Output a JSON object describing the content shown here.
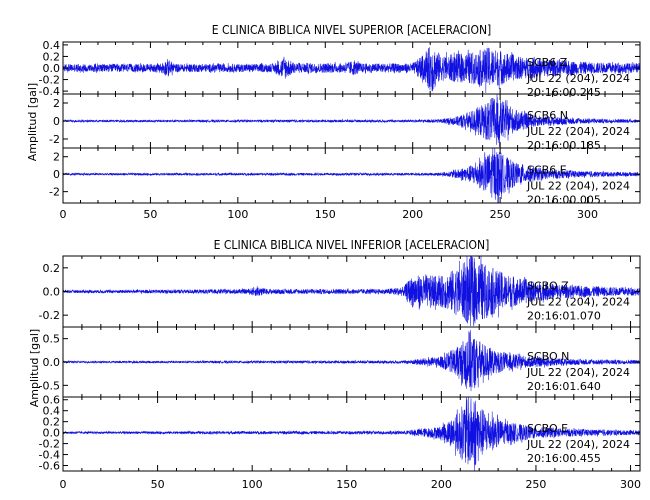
{
  "chart_data": [
    {
      "type": "line",
      "title": "E CLINICA BIBLICA NIVEL SUPERIOR [ACELERACION]",
      "ylabel": "Amplitud [gal]",
      "xlim": [
        0,
        330
      ],
      "xticks": [
        "0",
        "50",
        "100",
        "150",
        "200",
        "250",
        "300"
      ],
      "line_color": "#1010e0",
      "panels": [
        {
          "station": "SCB6",
          "component": "Z",
          "date": "JUL 22 (204), 2024",
          "time": "20:16:00.245",
          "ylim": [
            -0.45,
            0.45
          ],
          "yticks": [
            "0.4",
            "0.2",
            "0.0",
            "-0.2",
            "-0.4"
          ],
          "envelope": [
            [
              0,
              0.06
            ],
            [
              10,
              0.07
            ],
            [
              55,
              0.07
            ],
            [
              60,
              0.16
            ],
            [
              64,
              0.07
            ],
            [
              120,
              0.07
            ],
            [
              127,
              0.2
            ],
            [
              132,
              0.09
            ],
            [
              160,
              0.08
            ],
            [
              166,
              0.13
            ],
            [
              171,
              0.08
            ],
            [
              200,
              0.08
            ],
            [
              207,
              0.25
            ],
            [
              211,
              0.44
            ],
            [
              216,
              0.22
            ],
            [
              226,
              0.25
            ],
            [
              236,
              0.28
            ],
            [
              243,
              0.36
            ],
            [
              250,
              0.3
            ],
            [
              260,
              0.2
            ],
            [
              278,
              0.15
            ],
            [
              300,
              0.1
            ],
            [
              330,
              0.08
            ]
          ]
        },
        {
          "station": "SCB6",
          "component": "N",
          "date": "JUL 22 (204), 2024",
          "time": "20:16:00.185",
          "ylim": [
            -3,
            3
          ],
          "yticks": [
            "2",
            "0",
            "-2"
          ],
          "envelope": [
            [
              0,
              0.12
            ],
            [
              205,
              0.14
            ],
            [
              215,
              0.2
            ],
            [
              225,
              0.5
            ],
            [
              235,
              1.3
            ],
            [
              243,
              2.2
            ],
            [
              247,
              2.9
            ],
            [
              251,
              2.3
            ],
            [
              258,
              1.3
            ],
            [
              270,
              0.6
            ],
            [
              290,
              0.35
            ],
            [
              310,
              0.22
            ],
            [
              330,
              0.18
            ]
          ]
        },
        {
          "station": "SCB6",
          "component": "E",
          "date": "JUL 22 (204), 2024",
          "time": "20:16:00.005",
          "ylim": [
            -3.3,
            3
          ],
          "yticks": [
            "2",
            "0",
            "-2"
          ],
          "envelope": [
            [
              0,
              0.12
            ],
            [
              210,
              0.14
            ],
            [
              220,
              0.25
            ],
            [
              232,
              0.9
            ],
            [
              240,
              1.8
            ],
            [
              245,
              2.7
            ],
            [
              248,
              3.1
            ],
            [
              252,
              2.2
            ],
            [
              260,
              1.2
            ],
            [
              275,
              0.6
            ],
            [
              295,
              0.35
            ],
            [
              330,
              0.2
            ]
          ]
        }
      ]
    },
    {
      "type": "line",
      "title": "E CLINICA BIBLICA NIVEL INFERIOR [ACELERACION]",
      "ylabel": "Amplitud [gal]",
      "xlim": [
        0,
        305
      ],
      "xticks": [
        "0",
        "50",
        "100",
        "150",
        "200",
        "250",
        "300"
      ],
      "line_color": "#1010e0",
      "panels": [
        {
          "station": "SCBO",
          "component": "Z",
          "date": "JUL 22 (204), 2024",
          "time": "20:16:01.070",
          "ylim": [
            -0.3,
            0.3
          ],
          "yticks": [
            "0.2",
            "0.0",
            "-0.2"
          ],
          "envelope": [
            [
              0,
              0.012
            ],
            [
              50,
              0.015
            ],
            [
              98,
              0.02
            ],
            [
              103,
              0.045
            ],
            [
              108,
              0.02
            ],
            [
              170,
              0.02
            ],
            [
              180,
              0.04
            ],
            [
              185,
              0.14
            ],
            [
              200,
              0.13
            ],
            [
              210,
              0.22
            ],
            [
              216,
              0.31
            ],
            [
              222,
              0.24
            ],
            [
              235,
              0.14
            ],
            [
              250,
              0.08
            ],
            [
              270,
              0.05
            ],
            [
              305,
              0.03
            ]
          ]
        },
        {
          "station": "SCBO",
          "component": "N",
          "date": "JUL 22 (204), 2024",
          "time": "20:16:01.640",
          "ylim": [
            -0.75,
            0.75
          ],
          "yticks": [
            "0.5",
            "0.0",
            "-0.5"
          ],
          "envelope": [
            [
              0,
              0.02
            ],
            [
              180,
              0.03
            ],
            [
              200,
              0.12
            ],
            [
              210,
              0.38
            ],
            [
              215,
              0.72
            ],
            [
              219,
              0.5
            ],
            [
              228,
              0.25
            ],
            [
              245,
              0.12
            ],
            [
              270,
              0.06
            ],
            [
              305,
              0.04
            ]
          ]
        },
        {
          "station": "SCBO",
          "component": "E",
          "date": "JUL 22 (204), 2024",
          "time": "20:16:00.455",
          "ylim": [
            -0.7,
            0.65
          ],
          "yticks": [
            "0.6",
            "0.4",
            "0.2",
            "0.0",
            "-0.2",
            "-0.4",
            "-0.6"
          ],
          "envelope": [
            [
              0,
              0.02
            ],
            [
              180,
              0.03
            ],
            [
              200,
              0.12
            ],
            [
              208,
              0.35
            ],
            [
              213,
              0.6
            ],
            [
              217,
              0.68
            ],
            [
              222,
              0.42
            ],
            [
              232,
              0.22
            ],
            [
              250,
              0.1
            ],
            [
              275,
              0.06
            ],
            [
              305,
              0.04
            ]
          ]
        }
      ]
    }
  ]
}
